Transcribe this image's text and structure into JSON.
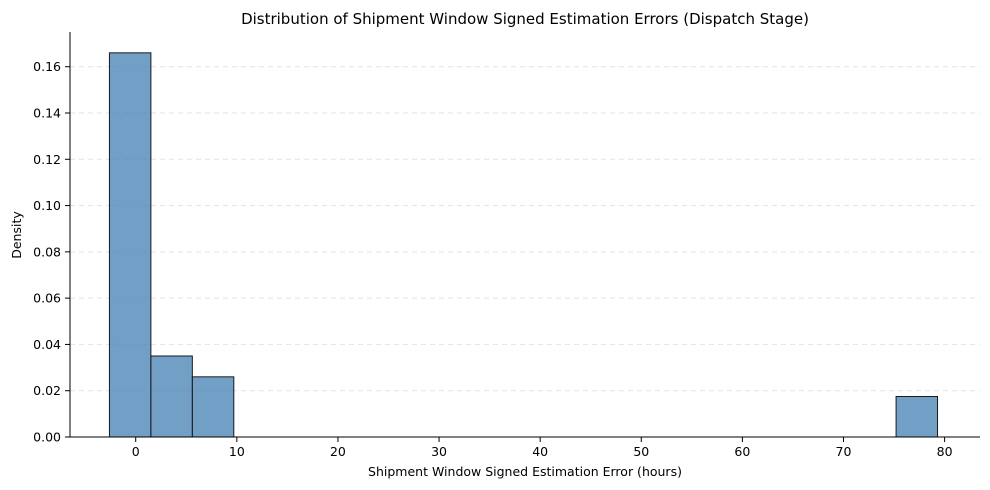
{
  "chart_data": {
    "type": "bar",
    "title": "Distribution of Shipment Window Signed Estimation Errors (Dispatch Stage)",
    "xlabel": "Shipment Window Signed Estimation Error (hours)",
    "ylabel": "Density",
    "xlim": [
      -6.5,
      83.5
    ],
    "ylim": [
      0,
      0.175
    ],
    "x_ticks": [
      0,
      10,
      20,
      30,
      40,
      50,
      60,
      70,
      80
    ],
    "y_ticks": [
      0.0,
      0.02,
      0.04,
      0.06,
      0.08,
      0.1,
      0.12,
      0.14,
      0.16
    ],
    "x_tick_labels": [
      "0",
      "10",
      "20",
      "30",
      "40",
      "50",
      "60",
      "70",
      "80"
    ],
    "y_tick_labels": [
      "0.00",
      "0.02",
      "0.04",
      "0.06",
      "0.08",
      "0.10",
      "0.12",
      "0.14",
      "0.16"
    ],
    "bins": [
      {
        "x0": -2.6,
        "x1": 1.5,
        "density": 0.166
      },
      {
        "x0": 1.5,
        "x1": 5.6,
        "density": 0.035
      },
      {
        "x0": 5.6,
        "x1": 9.7,
        "density": 0.026
      },
      {
        "x0": 75.2,
        "x1": 79.3,
        "density": 0.0175
      }
    ],
    "grid": {
      "y": true,
      "x": false,
      "style": "dashed"
    },
    "colors": {
      "bar_fill": "#4a84b6",
      "bar_edge": "#1a1a1a",
      "grid": "#e3e3e3"
    }
  }
}
